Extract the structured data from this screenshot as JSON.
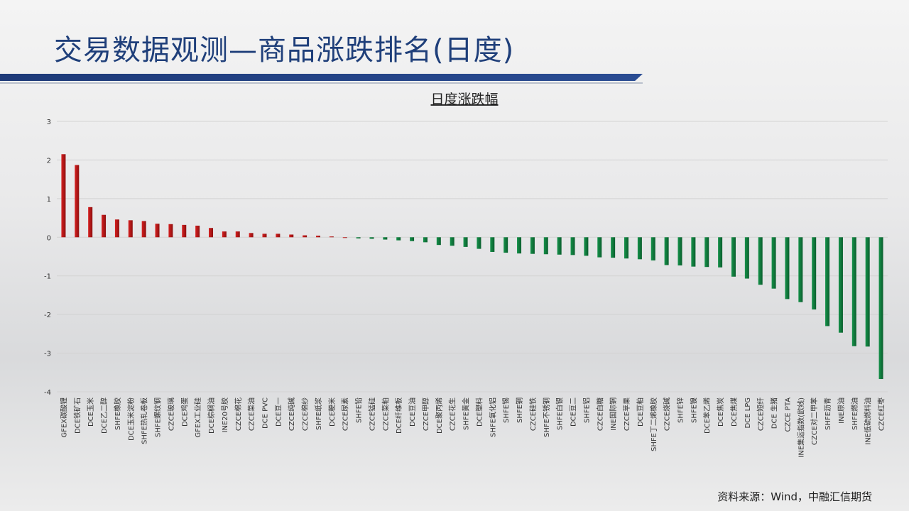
{
  "slide_title": "交易数据观测—商品涨跌排名(日度)",
  "source": "资料来源：Wind，中融汇信期货",
  "colors": {
    "up": "#d62020",
    "down": "#15924a",
    "title": "#1f3f7a",
    "bar": "#1e3a78"
  },
  "chart_data": {
    "type": "bar",
    "title": "日度涨跌幅",
    "ylim": [
      -4,
      3
    ],
    "yticks": [
      3,
      2,
      1,
      0,
      -1,
      -2,
      -3,
      -4
    ],
    "grid": true,
    "categories": [
      "GFEX碳酸锂",
      "DCE铁矿石",
      "DCE玉米",
      "DCE乙二醇",
      "SHFE橡胶",
      "DCE玉米淀粉",
      "SHFE热轧卷板",
      "SHFE螺纹钢",
      "CZCE玻璃",
      "DCE鸡蛋",
      "GFEX工业硅",
      "DCE棕榈油",
      "INE20号胶",
      "CZCE棉花",
      "CZCE菜油",
      "DCE PVC",
      "DCE豆一",
      "CZCE纯碱",
      "CZCE棉纱",
      "SHFE纸浆",
      "DCE粳米",
      "CZCE尿素",
      "SHFE铅",
      "CZCE锰硅",
      "CZCE菜粕",
      "DCE纤维板",
      "DCE豆油",
      "CZCE甲醇",
      "DCE聚丙烯",
      "CZCE花生",
      "SHFE黄金",
      "DCE塑料",
      "SHFE氧化铝",
      "SHFE锡",
      "SHFE铜",
      "CZCE硅铁",
      "SHFE不锈钢",
      "SHFE白银",
      "DCE豆二",
      "SHFE铝",
      "CZCE白糖",
      "INE国际铜",
      "CZCE苹果",
      "DCE豆粕",
      "SHFE丁二烯橡胶",
      "CZCE烧碱",
      "SHFE锌",
      "SHFE镍",
      "DCE苯乙烯",
      "DCE焦炭",
      "DCE焦煤",
      "DCE LPG",
      "CZCE短纤",
      "DCE 生猪",
      "CZCE PTA",
      "INE集运指数(欧线)",
      "CZCE对二甲苯",
      "SHFE沥青",
      "INE原油",
      "SHFE燃油",
      "INE低硫燃料油",
      "CZCE红枣"
    ],
    "values": [
      2.15,
      1.87,
      0.78,
      0.58,
      0.46,
      0.44,
      0.42,
      0.35,
      0.34,
      0.32,
      0.3,
      0.24,
      0.15,
      0.15,
      0.11,
      0.09,
      0.09,
      0.07,
      0.05,
      0.04,
      0.02,
      0,
      -0.03,
      -0.04,
      -0.06,
      -0.08,
      -0.1,
      -0.13,
      -0.2,
      -0.22,
      -0.25,
      -0.3,
      -0.38,
      -0.4,
      -0.42,
      -0.43,
      -0.44,
      -0.45,
      -0.46,
      -0.48,
      -0.52,
      -0.53,
      -0.55,
      -0.57,
      -0.6,
      -0.72,
      -0.73,
      -0.76,
      -0.77,
      -0.78,
      -1.02,
      -1.07,
      -1.23,
      -1.33,
      -1.6,
      -1.68,
      -1.87,
      -2.3,
      -2.47,
      -2.82,
      -2.83,
      -3.67
    ]
  }
}
